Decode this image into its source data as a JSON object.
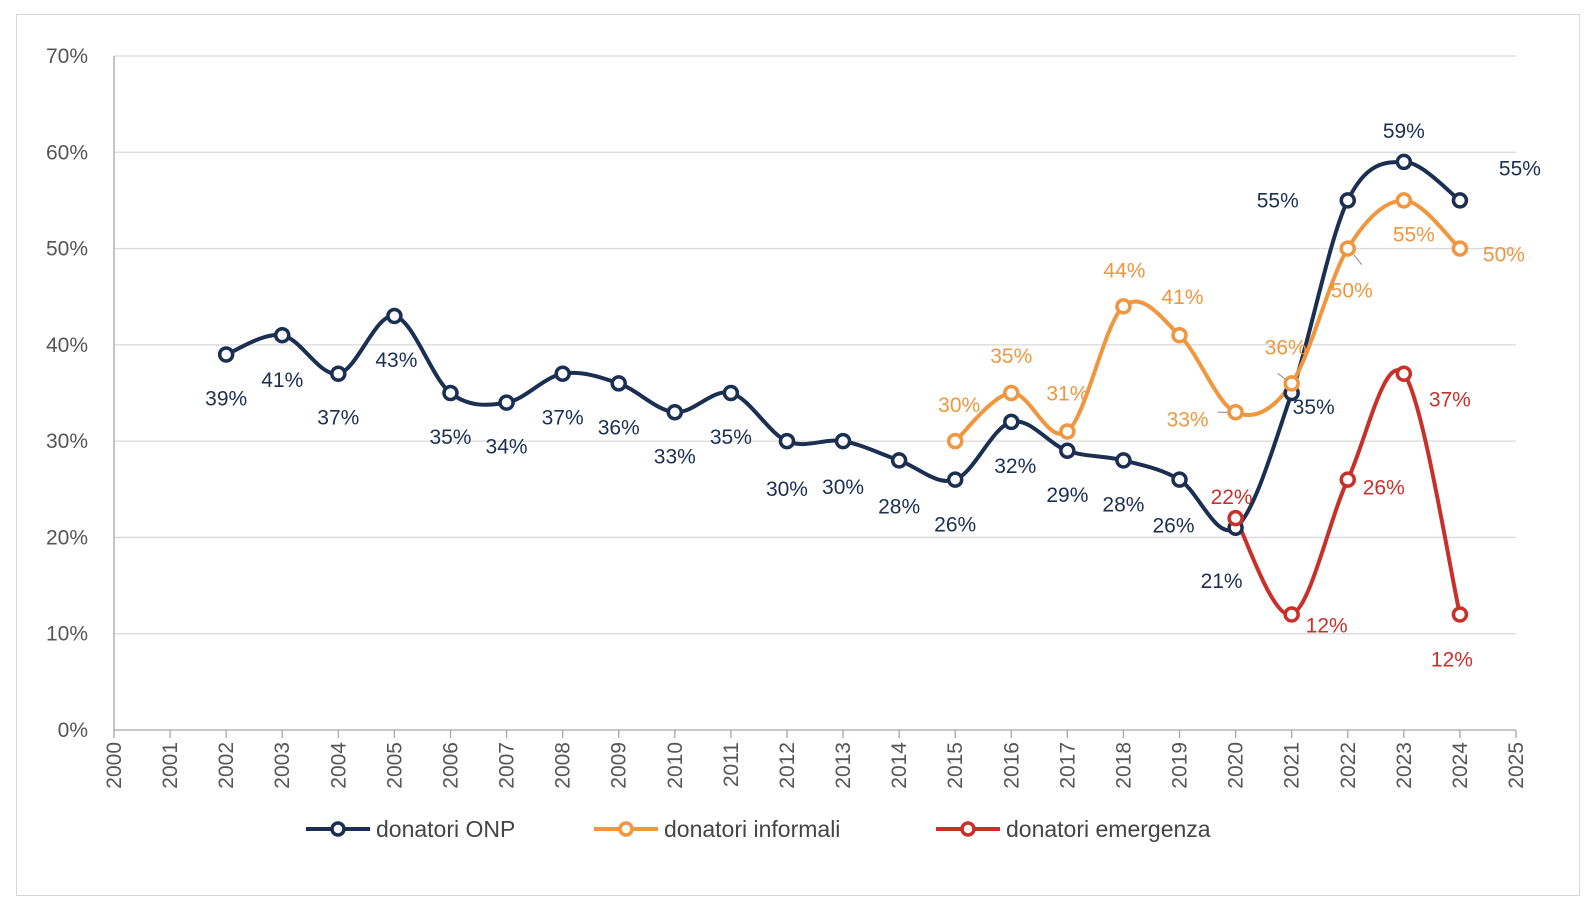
{
  "chart_data": {
    "type": "line",
    "x": [
      2000,
      2001,
      2002,
      2003,
      2004,
      2005,
      2006,
      2007,
      2008,
      2009,
      2010,
      2011,
      2012,
      2013,
      2014,
      2015,
      2016,
      2017,
      2018,
      2019,
      2020,
      2021,
      2022,
      2023,
      2024,
      2025
    ],
    "x_tick_labels": [
      "2000",
      "2001",
      "2002",
      "2003",
      "2004",
      "2005",
      "2006",
      "2007",
      "2008",
      "2009",
      "2010",
      "2011",
      "2012",
      "2013",
      "2014",
      "2015",
      "2016",
      "2017",
      "2018",
      "2019",
      "2020",
      "2021",
      "2022",
      "2023",
      "2024",
      "2025"
    ],
    "xlim": [
      2000,
      2025
    ],
    "ylim": [
      0,
      70
    ],
    "y_ticks": [
      0,
      10,
      20,
      30,
      40,
      50,
      60,
      70
    ],
    "y_tick_labels": [
      "0%",
      "10%",
      "20%",
      "30%",
      "40%",
      "50%",
      "60%",
      "70%"
    ],
    "grid": "horizontal",
    "legend_position": "bottom",
    "title": "",
    "xlabel": "",
    "ylabel": "",
    "series": [
      {
        "name": "donatori ONP",
        "color": "#1b2f52",
        "x": [
          2002,
          2003,
          2004,
          2005,
          2006,
          2007,
          2008,
          2009,
          2010,
          2011,
          2012,
          2013,
          2014,
          2015,
          2016,
          2017,
          2018,
          2019,
          2020,
          2021,
          2022,
          2023,
          2024
        ],
        "values": [
          39,
          41,
          37,
          43,
          35,
          34,
          37,
          36,
          33,
          35,
          30,
          30,
          28,
          26,
          32,
          29,
          28,
          26,
          21,
          35,
          55,
          59,
          55
        ],
        "labels": [
          "39%",
          "41%",
          "37%",
          "43%",
          "35%",
          "34%",
          "37%",
          "36%",
          "33%",
          "35%",
          "30%",
          "30%",
          "28%",
          "26%",
          "32%",
          "29%",
          "28%",
          "26%",
          "21%",
          "35%",
          "55%",
          "59%",
          "55%"
        ]
      },
      {
        "name": "donatori informali",
        "color": "#f0963f",
        "x": [
          2015,
          2016,
          2017,
          2018,
          2019,
          2020,
          2021,
          2022,
          2023,
          2024
        ],
        "values": [
          30,
          35,
          31,
          44,
          41,
          33,
          36,
          50,
          55,
          50
        ],
        "labels": [
          "30%",
          "35%",
          "31%",
          "44%",
          "41%",
          "33%",
          "36%",
          "50%",
          "55%",
          "50%"
        ]
      },
      {
        "name": "donatori emergenza",
        "color": "#c8302a",
        "x": [
          2020,
          2021,
          2022,
          2023,
          2024
        ],
        "values": [
          22,
          12,
          26,
          37,
          12
        ],
        "labels": [
          "22%",
          "12%",
          "26%",
          "37%",
          "12%"
        ]
      }
    ]
  }
}
